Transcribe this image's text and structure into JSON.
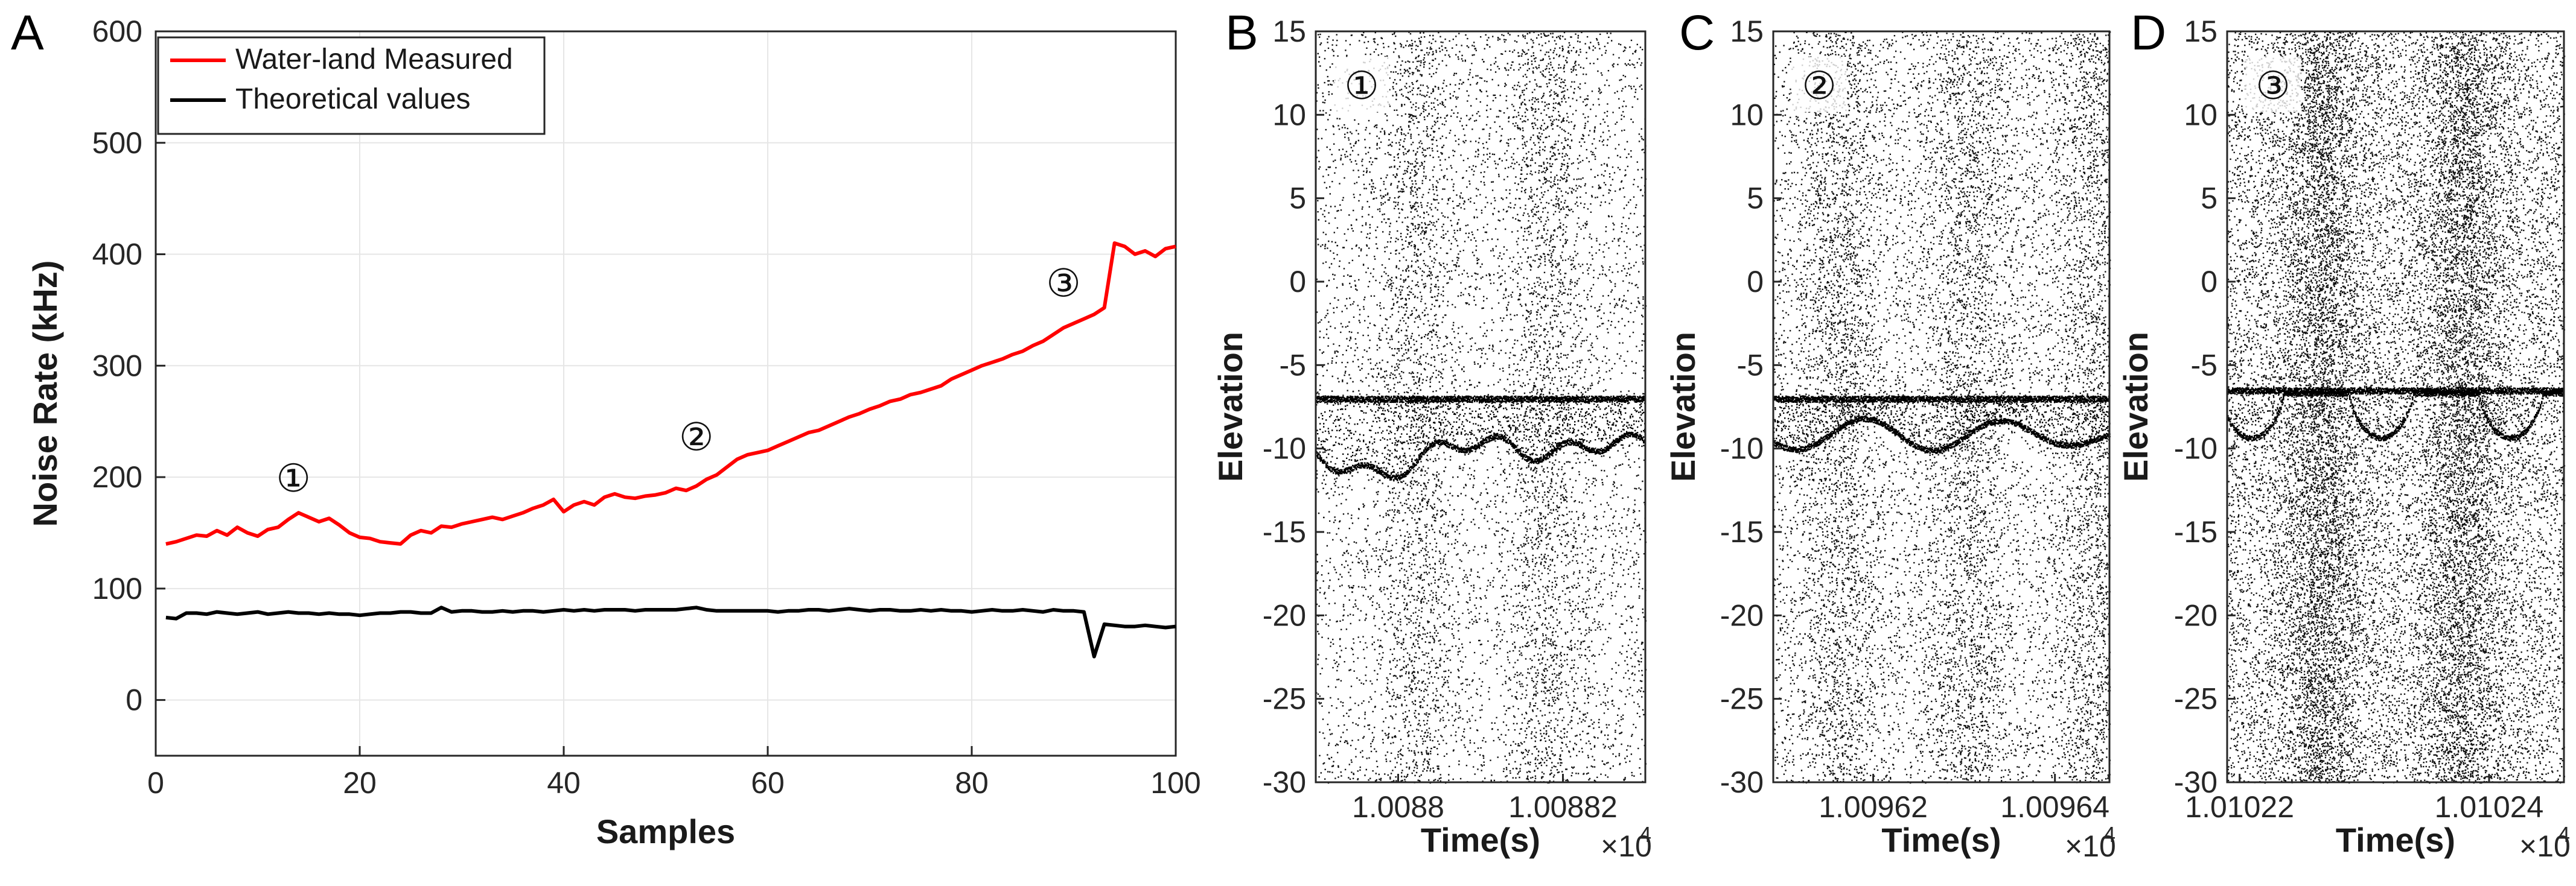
{
  "colors": {
    "measured": "#ff0000",
    "theoretical": "#000000",
    "grid": "#e6e6e6",
    "axis": "#262626"
  },
  "chart_data": [
    {
      "panel": "A",
      "type": "line",
      "title": "",
      "xlabel": "Samples",
      "ylabel": "Noise Rate (kHz)",
      "xlim": [
        0,
        100
      ],
      "ylim": [
        -50,
        600
      ],
      "xticks": [
        0,
        20,
        40,
        60,
        80,
        100
      ],
      "xtick_labels": [
        "0",
        "20",
        "40",
        "60",
        "80",
        "100"
      ],
      "yticks": [
        0,
        100,
        200,
        300,
        400,
        500,
        600
      ],
      "ytick_labels": [
        "0",
        "100",
        "200",
        "300",
        "400",
        "500",
        "600"
      ],
      "grid": true,
      "legend_position": "top-left",
      "x": [
        1,
        2,
        3,
        4,
        5,
        6,
        7,
        8,
        9,
        10,
        11,
        12,
        13,
        14,
        15,
        16,
        17,
        18,
        19,
        20,
        21,
        22,
        23,
        24,
        25,
        26,
        27,
        28,
        29,
        30,
        31,
        32,
        33,
        34,
        35,
        36,
        37,
        38,
        39,
        40,
        41,
        42,
        43,
        44,
        45,
        46,
        47,
        48,
        49,
        50,
        51,
        52,
        53,
        54,
        55,
        56,
        57,
        58,
        59,
        60,
        61,
        62,
        63,
        64,
        65,
        66,
        67,
        68,
        69,
        70,
        71,
        72,
        73,
        74,
        75,
        76,
        77,
        78,
        79,
        80,
        81,
        82,
        83,
        84,
        85,
        86,
        87,
        88,
        89,
        90,
        91,
        92,
        93,
        94,
        95,
        96,
        97,
        98,
        99,
        100
      ],
      "series": [
        {
          "name": "Water-land Measured",
          "color": "#ff0000",
          "values": [
            140,
            142,
            145,
            148,
            147,
            152,
            148,
            155,
            150,
            147,
            153,
            155,
            162,
            168,
            164,
            160,
            163,
            157,
            150,
            146,
            145,
            142,
            141,
            140,
            148,
            152,
            150,
            156,
            155,
            158,
            160,
            162,
            164,
            162,
            165,
            168,
            172,
            175,
            180,
            169,
            175,
            178,
            175,
            182,
            185,
            182,
            181,
            183,
            184,
            186,
            190,
            188,
            192,
            198,
            202,
            209,
            216,
            220,
            222,
            224,
            228,
            232,
            236,
            240,
            242,
            246,
            250,
            254,
            257,
            261,
            264,
            268,
            270,
            274,
            276,
            279,
            282,
            288,
            292,
            296,
            300,
            303,
            306,
            310,
            313,
            318,
            322,
            328,
            334,
            338,
            342,
            346,
            352,
            410,
            407,
            400,
            403,
            398,
            405,
            407
          ]
        },
        {
          "name": "Theoretical values",
          "color": "#000000",
          "values": [
            74,
            73,
            78,
            78,
            77,
            79,
            78,
            77,
            78,
            79,
            77,
            78,
            79,
            78,
            78,
            77,
            78,
            77,
            77,
            76,
            77,
            78,
            78,
            79,
            79,
            78,
            78,
            83,
            79,
            80,
            80,
            79,
            79,
            80,
            79,
            80,
            80,
            79,
            80,
            81,
            80,
            81,
            80,
            81,
            81,
            81,
            80,
            81,
            81,
            81,
            81,
            82,
            83,
            81,
            80,
            80,
            80,
            80,
            80,
            80,
            79,
            80,
            80,
            81,
            81,
            80,
            81,
            82,
            81,
            80,
            81,
            81,
            80,
            80,
            81,
            80,
            81,
            80,
            80,
            79,
            80,
            81,
            80,
            80,
            81,
            80,
            79,
            81,
            80,
            80,
            79,
            39,
            68,
            67,
            66,
            66,
            67,
            66,
            65,
            66
          ]
        }
      ],
      "annotations": [
        {
          "label": "①",
          "x": 13.5,
          "y": 200
        },
        {
          "label": "②",
          "x": 53,
          "y": 237
        },
        {
          "label": "③",
          "x": 89,
          "y": 375
        }
      ]
    },
    {
      "panel": "B",
      "type": "scatter",
      "annotation": "①",
      "xlabel": "Time(s)",
      "ylabel": "Elevation",
      "x_exponent_label": "×10",
      "x_exponent": "4",
      "xlim": [
        1.00879,
        1.00883
      ],
      "ylim": [
        -30,
        15
      ],
      "xticks": [
        1.0088,
        1.00882
      ],
      "xtick_labels": [
        "1.0088",
        "1.00882"
      ],
      "yticks": [
        15,
        10,
        5,
        0,
        -5,
        -10,
        -15,
        -20,
        -25,
        -30
      ],
      "ytick_labels": [
        "15",
        "10",
        "5",
        "0",
        "-5",
        "-10",
        "-15",
        "-20",
        "-25",
        "-30"
      ],
      "surface_elevation": -7,
      "bottom_elevation_range": [
        -12,
        -7
      ],
      "noise_density": "medium"
    },
    {
      "panel": "C",
      "type": "scatter",
      "annotation": "②",
      "xlabel": "Time(s)",
      "ylabel": "Elevation",
      "x_exponent_label": "×10",
      "x_exponent": "4",
      "xlim": [
        1.009609,
        1.009646
      ],
      "ylim": [
        -30,
        15
      ],
      "xticks": [
        1.00962,
        1.00964
      ],
      "xtick_labels": [
        "1.00962",
        "1.00964"
      ],
      "yticks": [
        15,
        10,
        5,
        0,
        -5,
        -10,
        -15,
        -20,
        -25,
        -30
      ],
      "ytick_labels": [
        "15",
        "10",
        "5",
        "0",
        "-5",
        "-10",
        "-15",
        "-20",
        "-25",
        "-30"
      ],
      "surface_elevation": -7,
      "bottom_elevation_range": [
        -10.5,
        -7.5
      ],
      "noise_density": "medium-high"
    },
    {
      "panel": "D",
      "type": "scatter",
      "annotation": "③",
      "xlabel": "Time(s)",
      "ylabel": "Elevation",
      "x_exponent_label": "×10",
      "x_exponent": "4",
      "xlim": [
        1.010219,
        1.010246
      ],
      "ylim": [
        -30,
        15
      ],
      "xticks": [
        1.01022,
        1.01024
      ],
      "xtick_labels": [
        "1.01022",
        "1.01024"
      ],
      "yticks": [
        15,
        10,
        5,
        0,
        -5,
        -10,
        -15,
        -20,
        -25,
        -30
      ],
      "ytick_labels": [
        "15",
        "10",
        "5",
        "0",
        "-5",
        "-10",
        "-15",
        "-20",
        "-25",
        "-30"
      ],
      "surface_elevation": -6.5,
      "bottom_elevation_range": [
        -9.5,
        -6.5
      ],
      "noise_density": "high"
    }
  ]
}
